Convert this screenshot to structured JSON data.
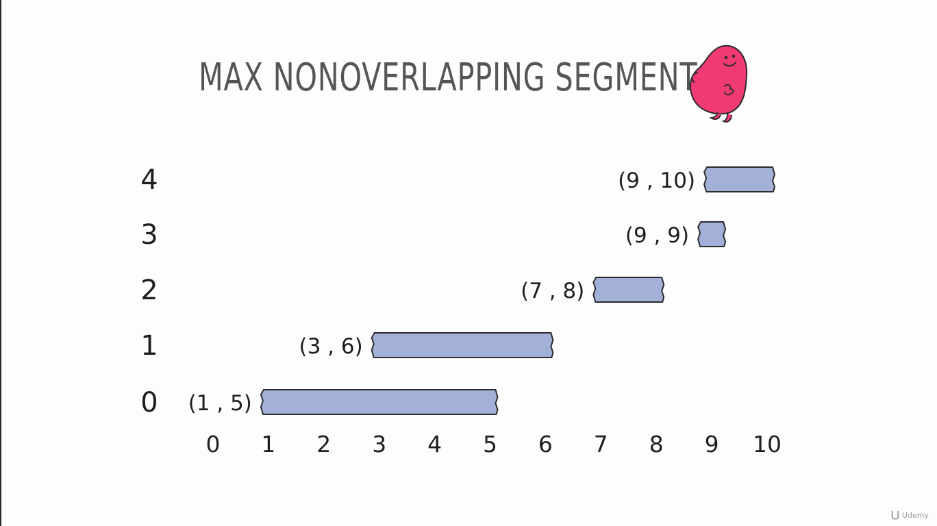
{
  "chart_data": {
    "type": "bar",
    "title": "MAX NONOVERLAPPING SEGMENTS",
    "x_ticks": [
      "0",
      "1",
      "2",
      "3",
      "4",
      "5",
      "6",
      "7",
      "8",
      "9",
      "10"
    ],
    "y_ticks": [
      "0",
      "1",
      "2",
      "3",
      "4"
    ],
    "xlim": [
      0,
      10
    ],
    "segments": [
      {
        "index": 0,
        "start": 1,
        "end": 5,
        "label": "(1 , 5)"
      },
      {
        "index": 1,
        "start": 3,
        "end": 6,
        "label": "(3 , 6)"
      },
      {
        "index": 2,
        "start": 7,
        "end": 8,
        "label": "(7 , 8)"
      },
      {
        "index": 3,
        "start": 9,
        "end": 9,
        "label": "(9 , 9)"
      },
      {
        "index": 4,
        "start": 9,
        "end": 10,
        "label": "(9 , 10)"
      }
    ],
    "grid": false,
    "bar_color": "#a3b1d8",
    "bar_outline": "#2b2b2b"
  },
  "watermark": {
    "text": "Udemy",
    "icon": "udemy-logo-icon"
  },
  "mascot": {
    "icon": "pink-blob-mascot-icon",
    "color": "#ef3a73"
  }
}
